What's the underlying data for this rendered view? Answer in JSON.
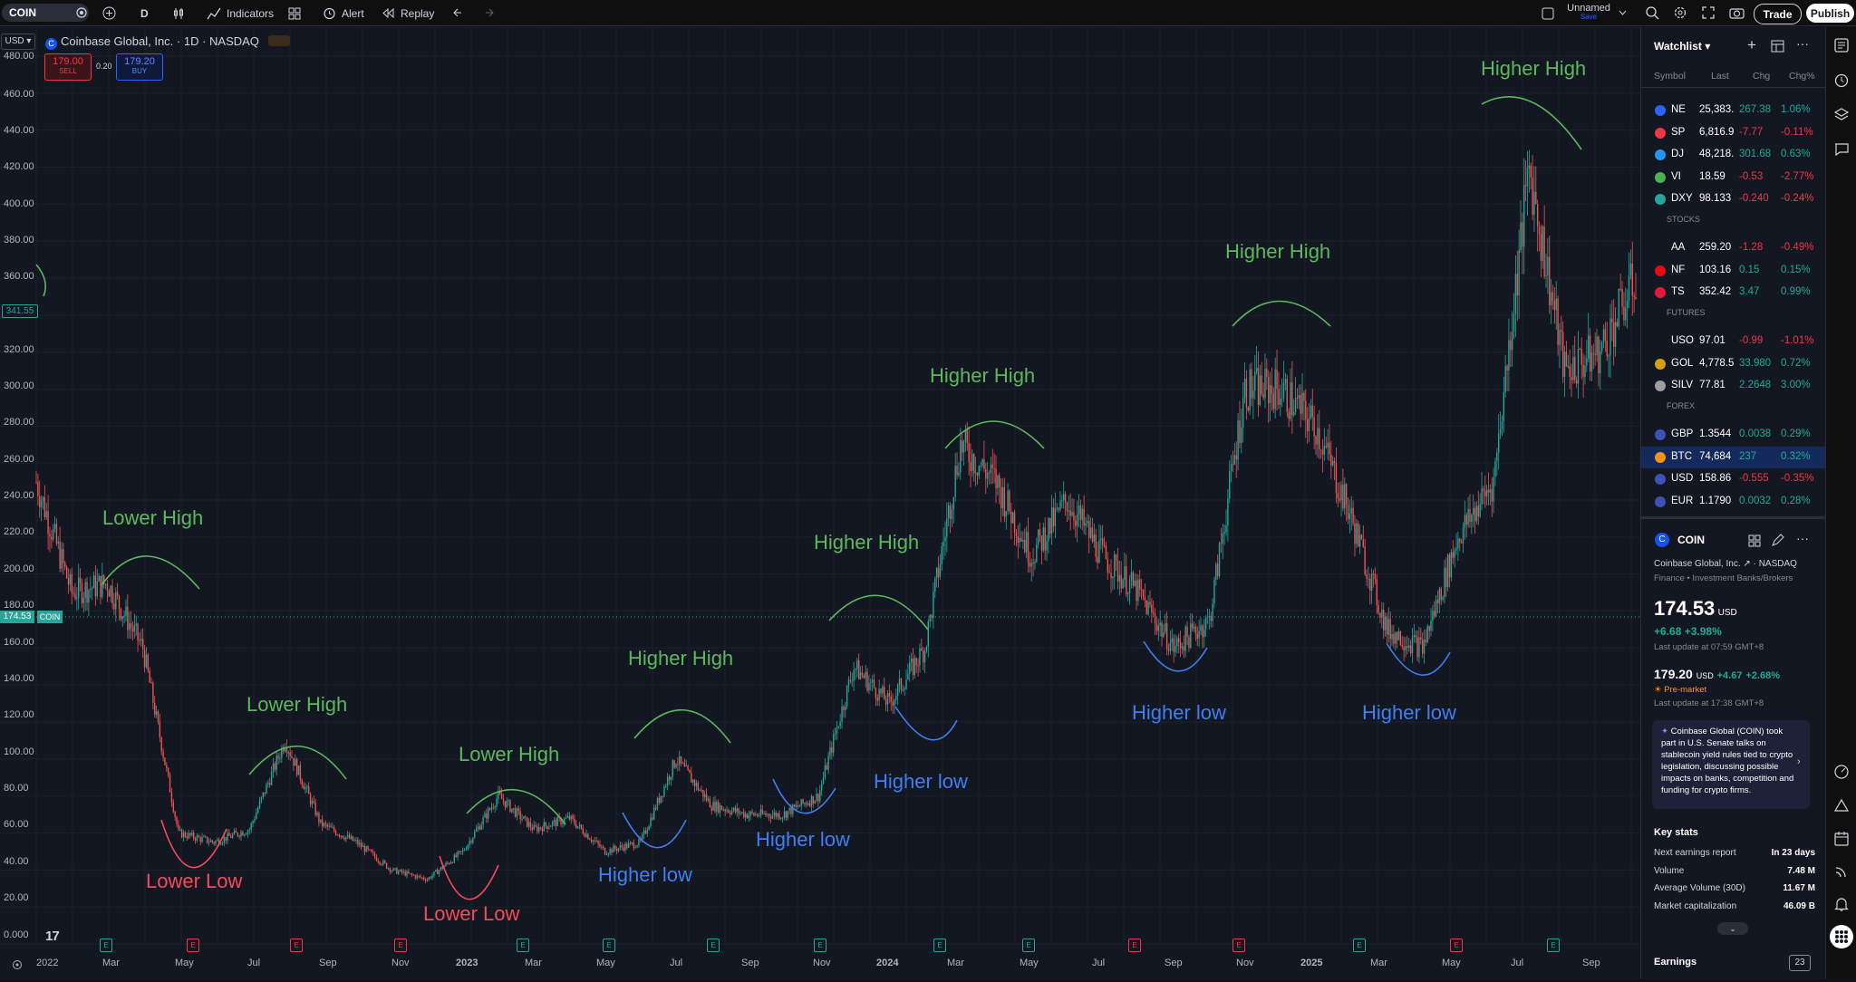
{
  "toolbar": {
    "symbol": "COIN",
    "interval": "D",
    "indicators": "Indicators",
    "alert": "Alert",
    "replay": "Replay",
    "layout_name": "Unnamed",
    "layout_sub": "Save",
    "trade": "Trade",
    "publish": "Publish"
  },
  "chart": {
    "title": "Coinbase Global, Inc. · 1D · NASDAQ",
    "currency": "USD",
    "sell_price": "179.00",
    "sell_label": "SELL",
    "spread": "0.20",
    "buy_price": "179.20",
    "buy_label": "BUY",
    "y_ticks": [
      "480.00",
      "460.00",
      "440.00",
      "420.00",
      "400.00",
      "380.00",
      "360.00",
      "341.55",
      "320.00",
      "300.00",
      "280.00",
      "260.00",
      "240.00",
      "220.00",
      "200.00",
      "180.00",
      "174.53",
      "160.00",
      "140.00",
      "120.00",
      "100.00",
      "80.00",
      "60.00",
      "40.00",
      "20.00",
      "0.000"
    ],
    "last_price_tag": "174.53",
    "last_symbol_tag": "COIN",
    "crosshair_tag": "341.55",
    "x_ticks": [
      "2022",
      "Mar",
      "May",
      "Jul",
      "Sep",
      "Nov",
      "2023",
      "Mar",
      "May",
      "Jul",
      "Sep",
      "Nov",
      "2024",
      "Mar",
      "May",
      "Jul",
      "Sep",
      "Nov",
      "2025",
      "Mar",
      "May",
      "Jul",
      "Sep"
    ],
    "earnings_badge": "E",
    "annotations": [
      {
        "text": "Lower High",
        "kind": "high"
      },
      {
        "text": "Lower High",
        "kind": "high"
      },
      {
        "text": "Lower High",
        "kind": "high"
      },
      {
        "text": "Higher High",
        "kind": "high"
      },
      {
        "text": "Higher High",
        "kind": "high"
      },
      {
        "text": "Higher High",
        "kind": "high"
      },
      {
        "text": "Higher High",
        "kind": "high"
      },
      {
        "text": "Higher High",
        "kind": "high"
      },
      {
        "text": "Lower Low",
        "kind": "low"
      },
      {
        "text": "Lower Low",
        "kind": "low"
      },
      {
        "text": "Higher low",
        "kind": "hlow"
      },
      {
        "text": "Higher low",
        "kind": "hlow"
      },
      {
        "text": "Higher low",
        "kind": "hlow"
      },
      {
        "text": "Higher low",
        "kind": "hlow"
      },
      {
        "text": "Higher low",
        "kind": "hlow"
      }
    ]
  },
  "chart_data": {
    "type": "line",
    "title": "Coinbase Global, Inc. · 1D · NASDAQ",
    "xlabel": "",
    "ylabel": "",
    "ylim": [
      0,
      480
    ],
    "x": [
      "2022-01",
      "2022-02",
      "2022-03",
      "2022-04",
      "2022-05",
      "2022-06",
      "2022-07",
      "2022-08",
      "2022-09",
      "2022-10",
      "2022-11",
      "2022-12",
      "2023-01",
      "2023-02",
      "2023-03",
      "2023-04",
      "2023-05",
      "2023-06",
      "2023-07",
      "2023-08",
      "2023-09",
      "2023-10",
      "2023-11",
      "2023-12",
      "2024-01",
      "2024-02",
      "2024-03",
      "2024-04",
      "2024-05",
      "2024-06",
      "2024-07",
      "2024-08",
      "2024-09",
      "2024-10",
      "2024-11",
      "2024-12",
      "2025-01",
      "2025-02",
      "2025-03",
      "2025-04",
      "2025-05",
      "2025-06",
      "2025-07",
      "2025-08",
      "2025-09",
      "2025-10"
    ],
    "series": [
      {
        "values": [
          250,
          190,
          195,
          160,
          60,
          55,
          62,
          110,
          65,
          55,
          40,
          35,
          50,
          80,
          62,
          68,
          50,
          55,
          100,
          75,
          70,
          70,
          80,
          150,
          130,
          160,
          270,
          250,
          210,
          240,
          210,
          190,
          160,
          175,
          300,
          300,
          280,
          230,
          170,
          160,
          220,
          250,
          420,
          310,
          320,
          360
        ]
      }
    ],
    "grid": true,
    "last_value": 174.53
  },
  "watchlist": {
    "title": "Watchlist",
    "columns": [
      "Symbol",
      "Last",
      "Chg",
      "Chg%"
    ],
    "sections": [
      "STOCKS",
      "FUTURES",
      "FOREX"
    ],
    "rows": [
      {
        "sym": "NE",
        "last": "25,383.",
        "chg": "267.38",
        "pct": "1.06%",
        "dir": "up",
        "color": "#2962ff"
      },
      {
        "sym": "SP",
        "last": "6,816.9",
        "chg": "-7.77",
        "pct": "-0.11%",
        "dir": "down",
        "color": "#f23645"
      },
      {
        "sym": "DJ",
        "last": "48,218.",
        "chg": "301.68",
        "pct": "0.63%",
        "dir": "up",
        "color": "#2196f3"
      },
      {
        "sym": "VI",
        "last": "18.59",
        "chg": "-0.53",
        "pct": "-2.77%",
        "dir": "down",
        "color": "#4caf50"
      },
      {
        "sym": "DXY",
        "last": "98.133",
        "chg": "-0.240",
        "pct": "-0.24%",
        "dir": "down",
        "color": "#26a69a"
      },
      {
        "sym": "AA",
        "last": "259.20",
        "chg": "-1.28",
        "pct": "-0.49%",
        "dir": "down",
        "color": "#131722"
      },
      {
        "sym": "NF",
        "last": "103.16",
        "chg": "0.15",
        "pct": "0.15%",
        "dir": "up",
        "color": "#e50914"
      },
      {
        "sym": "TS",
        "last": "352.42",
        "chg": "3.47",
        "pct": "0.99%",
        "dir": "up",
        "color": "#e31937"
      },
      {
        "sym": "USO",
        "last": "97.01",
        "chg": "-0.99",
        "pct": "-1.01%",
        "dir": "down",
        "color": "#131722"
      },
      {
        "sym": "GOL",
        "last": "4,778.5",
        "chg": "33.980",
        "pct": "0.72%",
        "dir": "up",
        "color": "#d4a017"
      },
      {
        "sym": "SILV",
        "last": "77.81",
        "chg": "2.2648",
        "pct": "3.00%",
        "dir": "up",
        "color": "#9e9e9e"
      },
      {
        "sym": "GBP",
        "last": "1.3544",
        "chg": "0.0038",
        "pct": "0.29%",
        "dir": "up",
        "color": "#3f51b5"
      },
      {
        "sym": "BTC",
        "last": "74,684",
        "chg": "237",
        "pct": "0.32%",
        "dir": "up",
        "color": "#f7931a"
      },
      {
        "sym": "USD",
        "last": "158.86",
        "chg": "-0.555",
        "pct": "-0.35%",
        "dir": "down",
        "color": "#3f51b5"
      },
      {
        "sym": "EUR",
        "last": "1.1790",
        "chg": "0.0032",
        "pct": "0.28%",
        "dir": "up",
        "color": "#3f51b5"
      }
    ]
  },
  "details": {
    "symbol": "COIN",
    "name": "Coinbase Global, Inc.",
    "exchange": "NASDAQ",
    "sector": "Finance • Investment Banks/Brokers",
    "price": "174.53",
    "currency": "USD",
    "change": "+6.68",
    "change_pct": "+3.98%",
    "updated": "Last update at 07:59 GMT+8",
    "pre_price": "179.20",
    "pre_currency": "USD",
    "pre_change": "+4.67",
    "pre_pct": "+2.68%",
    "pre_label": "Pre-market",
    "pre_updated": "Last update at 17:38 GMT+8",
    "news": "Coinbase Global (COIN) took part in U.S. Senate talks on stablecoin yield rules tied to crypto legislation, discussing possible impacts on banks, competition and funding for crypto firms.",
    "key_stats_title": "Key stats",
    "stats": [
      {
        "label": "Next earnings report",
        "value": "In 23 days"
      },
      {
        "label": "Volume",
        "value": "7.48 M"
      },
      {
        "label": "Average Volume (30D)",
        "value": "11.67 M"
      },
      {
        "label": "Market capitalization",
        "value": "46.09 B"
      }
    ],
    "earnings_title": "Earnings",
    "earnings_badge": "23"
  }
}
